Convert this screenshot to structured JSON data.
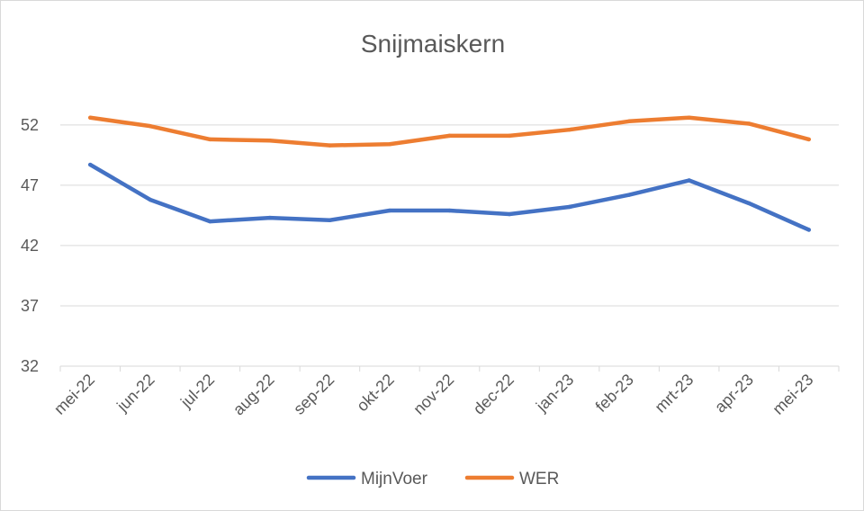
{
  "chart_data": {
    "type": "line",
    "title": "Snijmaiskern",
    "xlabel": "",
    "ylabel": "",
    "categories": [
      "mei-22",
      "jun-22",
      "jul-22",
      "aug-22",
      "sep-22",
      "okt-22",
      "nov-22",
      "dec-22",
      "jan-23",
      "feb-23",
      "mrt-23",
      "apr-23",
      "mei-23"
    ],
    "y_ticks": [
      32,
      37,
      42,
      47,
      52
    ],
    "ylim": [
      32,
      54
    ],
    "grid": true,
    "legend_position": "bottom",
    "series": [
      {
        "name": "MijnVoer",
        "color": "#4472C4",
        "values": [
          48.7,
          45.8,
          44.0,
          44.3,
          44.1,
          44.9,
          44.9,
          44.6,
          45.2,
          46.2,
          47.4,
          45.5,
          43.3
        ]
      },
      {
        "name": "WER",
        "color": "#ED7D31",
        "values": [
          52.6,
          51.9,
          50.8,
          50.7,
          50.3,
          50.4,
          51.1,
          51.1,
          51.6,
          52.3,
          52.6,
          52.1,
          50.8
        ]
      }
    ]
  }
}
